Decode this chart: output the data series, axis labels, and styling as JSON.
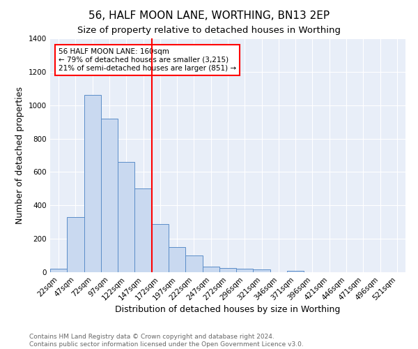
{
  "title": "56, HALF MOON LANE, WORTHING, BN13 2EP",
  "subtitle": "Size of property relative to detached houses in Worthing",
  "xlabel": "Distribution of detached houses by size in Worthing",
  "ylabel": "Number of detached properties",
  "categories": [
    "22sqm",
    "47sqm",
    "72sqm",
    "97sqm",
    "122sqm",
    "147sqm",
    "172sqm",
    "197sqm",
    "222sqm",
    "247sqm",
    "272sqm",
    "296sqm",
    "321sqm",
    "346sqm",
    "371sqm",
    "396sqm",
    "421sqm",
    "446sqm",
    "471sqm",
    "496sqm",
    "521sqm"
  ],
  "bar_values": [
    20,
    330,
    1060,
    920,
    660,
    500,
    290,
    150,
    100,
    35,
    25,
    20,
    15,
    0,
    10,
    0,
    0,
    0,
    0,
    0,
    0
  ],
  "bar_color": "#c9d9f0",
  "bar_edge_color": "#5b8dc8",
  "background_color": "#e8eef8",
  "grid_color": "#ffffff",
  "vline_x": 5.5,
  "vline_color": "red",
  "annotation_text": "56 HALF MOON LANE: 160sqm\n← 79% of detached houses are smaller (3,215)\n21% of semi-detached houses are larger (851) →",
  "annotation_box_color": "white",
  "annotation_box_edge": "red",
  "ylim": [
    0,
    1400
  ],
  "yticks": [
    0,
    200,
    400,
    600,
    800,
    1000,
    1200,
    1400
  ],
  "footnote": "Contains HM Land Registry data © Crown copyright and database right 2024.\nContains public sector information licensed under the Open Government Licence v3.0.",
  "title_fontsize": 11,
  "subtitle_fontsize": 9.5,
  "xlabel_fontsize": 9,
  "ylabel_fontsize": 9,
  "tick_fontsize": 7.5,
  "footnote_fontsize": 6.5,
  "annotation_fontsize": 7.5
}
